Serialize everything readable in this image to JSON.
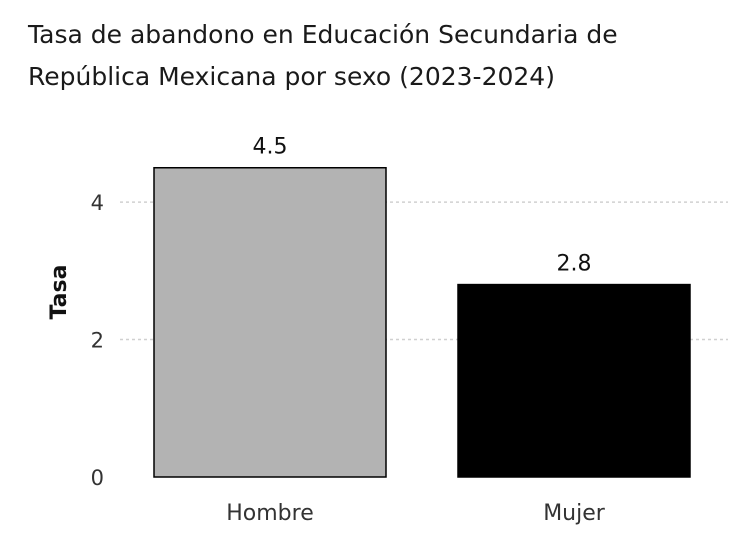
{
  "chart_data": {
    "type": "bar",
    "title_lines": [
      "Tasa de abandono en Educación Secundaria de",
      "República Mexicana por sexo (2023-2024)"
    ],
    "xlabel": "",
    "ylabel": "Tasa",
    "categories": [
      "Hombre",
      "Mujer"
    ],
    "values": [
      4.5,
      2.8
    ],
    "data_labels": [
      "4.5",
      "2.8"
    ],
    "bar_colors": [
      "#b3b3b3",
      "#000000"
    ],
    "ylim": [
      0,
      4.7
    ],
    "yticks": [
      0,
      2,
      4
    ],
    "grid": true,
    "legend": "none"
  }
}
